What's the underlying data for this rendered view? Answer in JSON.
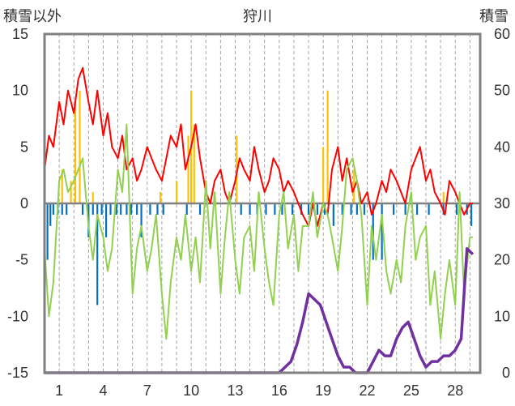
{
  "chart_data": {
    "type": "line",
    "title": "狩川",
    "left_axis_title": "積雪以外",
    "right_axis_title": "積雪",
    "ylim_left": [
      -15,
      15
    ],
    "yticks_left": [
      "15",
      "10",
      "5",
      "0",
      "-5",
      "-10",
      "-15"
    ],
    "ylim_right": [
      0,
      60
    ],
    "yticks_right": [
      "60",
      "50",
      "40",
      "30",
      "20",
      "10",
      "0"
    ],
    "xlim": [
      0,
      29.7
    ],
    "xticks": [
      "1",
      "4",
      "7",
      "10",
      "13",
      "16",
      "19",
      "22",
      "25",
      "28"
    ],
    "grid": "vertical dashed lines at each day",
    "colors": {
      "temp_max": "#ff0000",
      "temp_min": "#92d050",
      "precip": "#ffc000",
      "snow_change": "#0070c0",
      "snow_depth": "#7030a0",
      "zero_line": "#808080",
      "frame": "#808080"
    },
    "series": [
      {
        "axis": "left",
        "role": "temp_max",
        "x": [
          0.0,
          0.3,
          0.6,
          1.0,
          1.3,
          1.6,
          2.0,
          2.3,
          2.6,
          3.0,
          3.3,
          3.6,
          4.0,
          4.3,
          4.6,
          5.0,
          5.3,
          5.6,
          6.0,
          6.3,
          6.6,
          7.0,
          7.3,
          7.6,
          8.0,
          8.3,
          8.6,
          9.0,
          9.3,
          9.6,
          10.0,
          10.3,
          10.6,
          11.0,
          11.3,
          11.6,
          12.0,
          12.3,
          12.6,
          13.0,
          13.3,
          13.6,
          14.0,
          14.3,
          14.6,
          15.0,
          15.3,
          15.6,
          16.0,
          16.3,
          16.6,
          17.0,
          17.3,
          17.6,
          18.0,
          18.3,
          18.6,
          19.0,
          19.3,
          19.6,
          20.0,
          20.3,
          20.6,
          21.0,
          21.3,
          21.6,
          22.0,
          22.3,
          22.6,
          23.0,
          23.3,
          23.6,
          24.0,
          24.3,
          24.6,
          25.0,
          25.3,
          25.6,
          26.0,
          26.3,
          26.6,
          27.0,
          27.3,
          27.6,
          28.0,
          28.3,
          28.6,
          29.0,
          29.2
        ],
        "y": [
          3,
          6,
          5,
          9,
          7,
          10,
          8,
          11,
          12,
          9,
          7,
          10,
          6,
          8,
          5,
          4,
          6,
          3,
          4,
          2,
          3,
          5,
          4,
          3,
          2,
          4,
          6,
          5,
          7,
          3,
          5,
          7,
          4,
          1,
          0,
          2,
          3,
          1,
          0,
          2,
          4,
          3,
          2,
          5,
          3,
          1,
          2,
          4,
          3,
          1,
          2,
          1,
          0,
          -1,
          -2,
          0,
          -2,
          0,
          -1,
          3,
          5,
          2,
          4,
          1,
          2,
          0,
          1,
          -1,
          0,
          2,
          1,
          3,
          2,
          1,
          0,
          3,
          4,
          5,
          2,
          3,
          1,
          0,
          -1,
          2,
          1,
          0,
          -1,
          0,
          0
        ]
      },
      {
        "axis": "left",
        "role": "temp_min",
        "x": [
          0.0,
          0.3,
          0.6,
          1.0,
          1.3,
          1.6,
          2.0,
          2.3,
          2.6,
          3.0,
          3.3,
          3.6,
          4.0,
          4.3,
          4.6,
          5.0,
          5.3,
          5.6,
          6.0,
          6.3,
          6.6,
          7.0,
          7.3,
          7.6,
          8.0,
          8.3,
          8.6,
          9.0,
          9.3,
          9.6,
          10.0,
          10.3,
          10.6,
          11.0,
          11.3,
          11.6,
          12.0,
          12.3,
          12.6,
          13.0,
          13.3,
          13.6,
          14.0,
          14.3,
          14.6,
          15.0,
          15.3,
          15.6,
          16.0,
          16.3,
          16.6,
          17.0,
          17.3,
          17.6,
          18.0,
          18.3,
          18.6,
          19.0,
          19.3,
          19.6,
          20.0,
          20.3,
          20.6,
          21.0,
          21.3,
          21.6,
          22.0,
          22.3,
          22.6,
          23.0,
          23.3,
          23.6,
          24.0,
          24.3,
          24.6,
          25.0,
          25.3,
          25.6,
          26.0,
          26.3,
          26.6,
          27.0,
          27.3,
          27.6,
          28.0,
          28.3,
          28.6,
          29.0,
          29.2
        ],
        "y": [
          -4,
          -10,
          -7,
          2,
          3,
          1,
          2,
          3,
          4,
          -2,
          -5,
          -1,
          -3,
          -6,
          -4,
          3,
          1,
          7,
          -8,
          -4,
          -2,
          -6,
          -4,
          -1,
          -8,
          -12,
          -7,
          -3,
          -5,
          -1,
          -6,
          -3,
          -7,
          2,
          -4,
          1,
          -8,
          -3,
          1,
          -5,
          -8,
          -3,
          -2,
          -6,
          1,
          -4,
          -7,
          -9,
          -1,
          1,
          -4,
          -1,
          -6,
          -2,
          -2,
          1,
          -3,
          0,
          -1,
          -3,
          -6,
          -2,
          3,
          4,
          2,
          -1,
          -9,
          -2,
          -5,
          -1,
          -6,
          -8,
          -5,
          -7,
          -2,
          1,
          -5,
          -3,
          -2,
          -9,
          -6,
          -12,
          -8,
          -5,
          -9,
          1,
          -8,
          -3,
          -3
        ]
      },
      {
        "axis": "right",
        "role": "snow_depth",
        "x": [
          0.0,
          16.0,
          16.4,
          16.8,
          17.2,
          17.6,
          18.0,
          18.4,
          18.8,
          19.2,
          19.6,
          20.0,
          20.4,
          20.8,
          21.2,
          21.6,
          22.0,
          22.4,
          22.8,
          23.2,
          23.6,
          24.0,
          24.4,
          24.8,
          25.2,
          25.6,
          26.0,
          26.4,
          26.8,
          27.2,
          27.6,
          28.0,
          28.4,
          28.8,
          29.2
        ],
        "y": [
          0,
          0,
          1,
          2,
          5,
          9,
          14,
          13,
          12,
          9,
          6,
          3,
          1,
          1,
          0,
          0,
          0,
          2,
          4,
          3,
          3,
          6,
          8,
          9,
          6,
          3,
          1,
          2,
          2,
          3,
          3,
          4,
          6,
          22,
          21
        ]
      }
    ],
    "bars": [
      {
        "axis": "left",
        "role": "precip",
        "x": [
          1.2,
          1.8,
          2.1,
          2.4,
          3.3,
          7.9,
          9.0,
          9.8,
          10.0,
          10.2,
          13.1,
          19.0,
          19.3,
          21.1,
          27.2
        ],
        "values": [
          3,
          2,
          9,
          10,
          1,
          1,
          2,
          6,
          10,
          7,
          6,
          5,
          10,
          3,
          1
        ]
      },
      {
        "axis": "left",
        "role": "snow_change",
        "x": [
          0.2,
          0.4,
          0.6,
          0.9,
          1.2,
          1.5,
          2.6,
          3.0,
          3.3,
          3.6,
          3.9,
          4.2,
          4.5,
          4.9,
          5.2,
          5.6,
          5.9,
          6.3,
          6.6,
          7.2,
          7.7,
          8.1,
          9.7,
          10.6,
          13.4,
          14.0,
          14.5,
          15.1,
          15.7,
          16.2,
          16.9,
          17.5,
          18.0,
          18.6,
          19.1,
          19.7,
          20.3,
          20.9,
          21.3,
          21.8,
          22.4,
          23.0,
          23.8,
          24.6,
          25.4,
          26.2,
          27.2,
          28.1,
          28.8,
          29.1
        ],
        "values": [
          -5,
          -2,
          -1,
          -1,
          -1,
          -1,
          -1,
          -3,
          -1,
          -9,
          -1,
          -3,
          -1,
          -1,
          -1,
          -1,
          -1,
          -1,
          -3,
          -1,
          -1,
          -1,
          -1,
          -1,
          -1,
          -1,
          -1,
          -1,
          -1,
          -1,
          -1,
          -1,
          -1,
          -1,
          -1,
          -2,
          -1,
          -1,
          -1,
          -1,
          -5,
          -5,
          -1,
          -1,
          -1,
          -1,
          -1,
          -1,
          -1,
          -2
        ]
      }
    ]
  }
}
